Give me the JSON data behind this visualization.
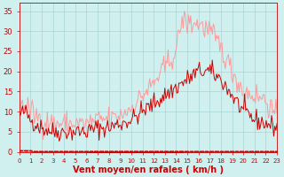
{
  "background_color": "#d0f0f0",
  "grid_color": "#aad4d4",
  "line_color_avg": "#cc0000",
  "line_color_gust": "#ff9999",
  "xlabel": "Vent moyen/en rafales ( km/h )",
  "xlabel_color": "#cc0000",
  "tick_color": "#cc0000",
  "ylim": [
    0,
    37
  ],
  "yticks": [
    0,
    5,
    10,
    15,
    20,
    25,
    30,
    35
  ],
  "xlim": [
    0,
    23
  ],
  "xticks": [
    0,
    1,
    2,
    3,
    4,
    5,
    6,
    7,
    8,
    9,
    10,
    11,
    12,
    13,
    14,
    15,
    16,
    17,
    18,
    19,
    20,
    21,
    22,
    23
  ],
  "xlabel_fontsize": 7,
  "tick_fontsize_x": 5,
  "tick_fontsize_y": 6
}
